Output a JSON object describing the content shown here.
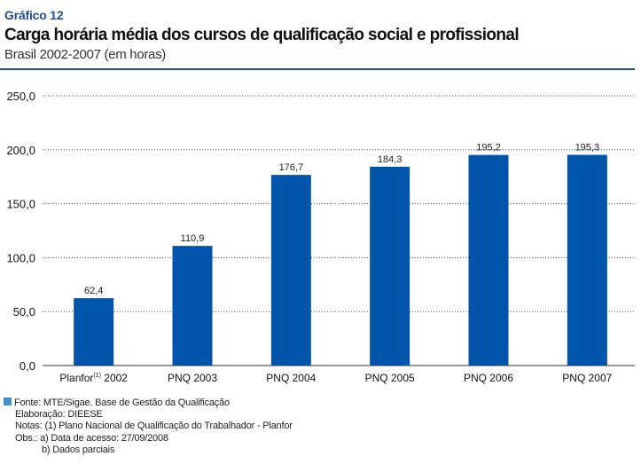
{
  "header": {
    "label": "Gráfico 12",
    "title": "Carga horária média dos cursos de qualificação social e profissional",
    "subtitle": "Brasil 2002-2007 (em horas)"
  },
  "chart_data": {
    "type": "bar",
    "categories": [
      "Planfor (1) 2002",
      "PNQ  2003",
      "PNQ 2004",
      "PNQ 2005",
      "PNQ 2006",
      "PNQ 2007"
    ],
    "category_parts": [
      {
        "main": "Planfor",
        "sup": "(1)",
        "rest": " 2002"
      },
      {
        "main": "PNQ  2003",
        "sup": "",
        "rest": ""
      },
      {
        "main": "PNQ 2004",
        "sup": "",
        "rest": ""
      },
      {
        "main": "PNQ 2005",
        "sup": "",
        "rest": ""
      },
      {
        "main": "PNQ 2006",
        "sup": "",
        "rest": ""
      },
      {
        "main": "PNQ 2007",
        "sup": "",
        "rest": ""
      }
    ],
    "values": [
      62.4,
      110.9,
      176.7,
      184.3,
      195.2,
      195.3
    ],
    "value_labels": [
      "62,4",
      "110,9",
      "176,7",
      "184,3",
      "195,2",
      "195,3"
    ],
    "yticks": [
      "0,0",
      "50,0",
      "100,0",
      "150,0",
      "200,0",
      "250,0"
    ],
    "ytick_values": [
      0,
      50,
      100,
      150,
      200,
      250
    ],
    "ylim": [
      0,
      250
    ],
    "grid": "dotted horizontal",
    "bar_color": "#0055aa",
    "xlabel": "",
    "ylabel": ""
  },
  "footer": {
    "source": "Fonte: MTE/Sigae. Base de Gestão da Qualificação",
    "elaboration": "Elaboração: DIEESE",
    "notes": "Notas: (1) Plano Nacional de Qualificação do Trabalhador - Planfor",
    "obs_a": "Obs.: a) Data de acesso: 27/09/2008",
    "obs_b": "b) Dados parciais",
    "square_color": "#4a90c8"
  }
}
